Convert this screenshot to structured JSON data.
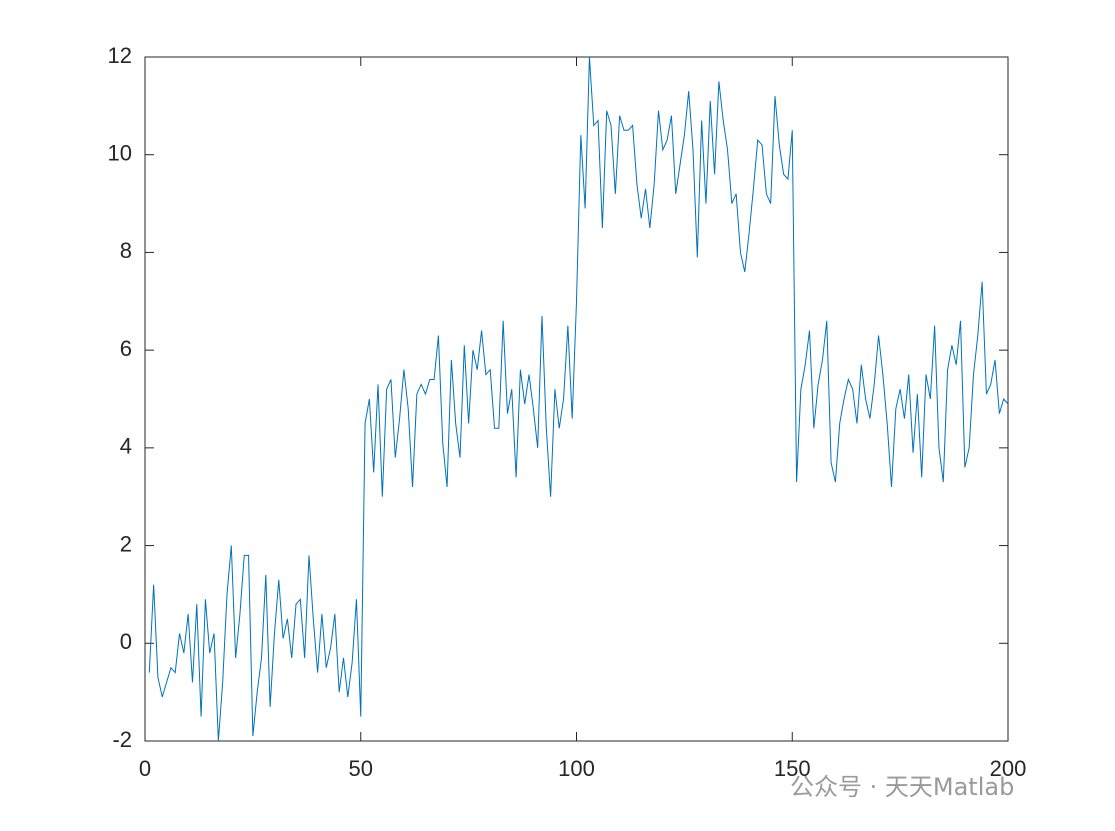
{
  "chart_data": {
    "type": "line",
    "x": [
      1,
      2,
      3,
      4,
      5,
      6,
      7,
      8,
      9,
      10,
      11,
      12,
      13,
      14,
      15,
      16,
      17,
      18,
      19,
      20,
      21,
      22,
      23,
      24,
      25,
      26,
      27,
      28,
      29,
      30,
      31,
      32,
      33,
      34,
      35,
      36,
      37,
      38,
      39,
      40,
      41,
      42,
      43,
      44,
      45,
      46,
      47,
      48,
      49,
      50,
      51,
      52,
      53,
      54,
      55,
      56,
      57,
      58,
      59,
      60,
      61,
      62,
      63,
      64,
      65,
      66,
      67,
      68,
      69,
      70,
      71,
      72,
      73,
      74,
      75,
      76,
      77,
      78,
      79,
      80,
      81,
      82,
      83,
      84,
      85,
      86,
      87,
      88,
      89,
      90,
      91,
      92,
      93,
      94,
      95,
      96,
      97,
      98,
      99,
      100,
      101,
      102,
      103,
      104,
      105,
      106,
      107,
      108,
      109,
      110,
      111,
      112,
      113,
      114,
      115,
      116,
      117,
      118,
      119,
      120,
      121,
      122,
      123,
      124,
      125,
      126,
      127,
      128,
      129,
      130,
      131,
      132,
      133,
      134,
      135,
      136,
      137,
      138,
      139,
      140,
      141,
      142,
      143,
      144,
      145,
      146,
      147,
      148,
      149,
      150,
      151,
      152,
      153,
      154,
      155,
      156,
      157,
      158,
      159,
      160,
      161,
      162,
      163,
      164,
      165,
      166,
      167,
      168,
      169,
      170,
      171,
      172,
      173,
      174,
      175,
      176,
      177,
      178,
      179,
      180,
      181,
      182,
      183,
      184,
      185,
      186,
      187,
      188,
      189,
      190,
      191,
      192,
      193,
      194,
      195,
      196,
      197,
      198,
      199,
      200
    ],
    "series": [
      {
        "color": "#0072bd",
        "values": [
          -0.6,
          1.2,
          -0.7,
          -1.1,
          -0.8,
          -0.5,
          -0.6,
          0.2,
          -0.2,
          0.6,
          -0.8,
          0.8,
          -1.5,
          0.9,
          -0.2,
          0.2,
          -2.0,
          -0.8,
          1.0,
          2.0,
          -0.3,
          0.6,
          1.8,
          1.8,
          -1.9,
          -1.0,
          -0.3,
          1.4,
          -1.3,
          0.2,
          1.3,
          0.1,
          0.5,
          -0.3,
          0.8,
          0.9,
          -0.3,
          1.8,
          0.5,
          -0.6,
          0.6,
          -0.5,
          -0.1,
          0.6,
          -1.0,
          -0.3,
          -1.1,
          -0.4,
          0.9,
          -1.5,
          4.5,
          5.0,
          3.5,
          5.3,
          3.0,
          5.2,
          5.4,
          3.8,
          4.6,
          5.6,
          4.8,
          3.2,
          5.1,
          5.3,
          5.1,
          5.4,
          5.4,
          6.3,
          4.1,
          3.2,
          5.8,
          4.5,
          3.8,
          6.1,
          4.5,
          6.0,
          5.6,
          6.4,
          5.5,
          5.6,
          4.4,
          4.4,
          6.6,
          4.7,
          5.2,
          3.4,
          5.6,
          4.9,
          5.5,
          4.8,
          4.0,
          6.7,
          4.4,
          3.0,
          5.2,
          4.4,
          5.0,
          6.5,
          4.6,
          7.0,
          10.4,
          8.9,
          12.0,
          10.6,
          10.7,
          8.5,
          10.9,
          10.6,
          9.2,
          10.8,
          10.5,
          10.5,
          10.6,
          9.4,
          8.7,
          9.3,
          8.5,
          9.4,
          10.9,
          10.1,
          10.3,
          10.8,
          9.2,
          9.8,
          10.4,
          11.3,
          10.1,
          7.9,
          10.7,
          9.0,
          11.1,
          9.6,
          11.5,
          10.7,
          10.1,
          9.0,
          9.2,
          8.0,
          7.6,
          8.4,
          9.3,
          10.3,
          10.2,
          9.2,
          9.0,
          11.2,
          10.2,
          9.6,
          9.5,
          10.5,
          3.3,
          5.2,
          5.7,
          6.4,
          4.4,
          5.3,
          5.8,
          6.6,
          3.7,
          3.3,
          4.5,
          5.0,
          5.4,
          5.2,
          4.5,
          5.7,
          5.0,
          4.6,
          5.3,
          6.3,
          5.5,
          4.5,
          3.2,
          4.8,
          5.2,
          4.6,
          5.5,
          3.9,
          5.1,
          3.4,
          5.5,
          5.0,
          6.5,
          4.0,
          3.3,
          5.6,
          6.1,
          5.7,
          6.6,
          3.6,
          4.0,
          5.5,
          6.3,
          7.4,
          5.1,
          5.3,
          5.8,
          4.7,
          5.0,
          4.9
        ]
      }
    ],
    "xlim": [
      0,
      200
    ],
    "xticks": [
      0,
      50,
      100,
      150,
      200
    ],
    "ylim": [
      -2,
      12
    ],
    "yticks": [
      -2,
      0,
      2,
      4,
      6,
      8,
      10,
      12
    ],
    "watermark": "公众号 · 天天Matlab"
  }
}
